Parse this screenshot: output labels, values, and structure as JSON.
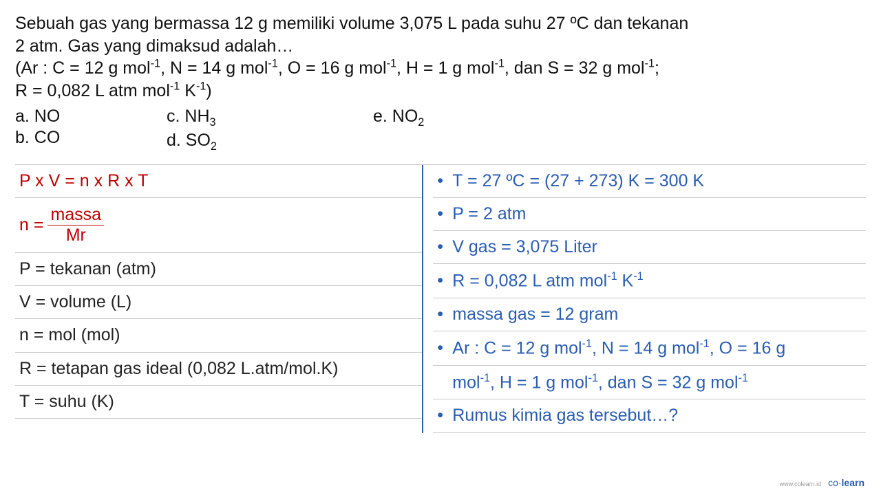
{
  "colors": {
    "text": "#111111",
    "red": "#c00000",
    "blue": "#2a5db0",
    "rule": "#c9c9c9",
    "background": "#ffffff"
  },
  "typography": {
    "body_fontsize_pt": 19,
    "footer_fontsize_pt": 11,
    "font_family": "Arial"
  },
  "question": {
    "line1": "Sebuah gas yang bermassa 12 g memiliki volume 3,075 L pada suhu 27 ºC dan tekanan",
    "line2": "2 atm. Gas yang dimaksud adalah…",
    "line3_pre": "(Ar : C = 12 g mol",
    "line3_mid1": ", N = 14 g mol",
    "line3_mid2": ", O = 16 g mol",
    "line3_mid3": ", H = 1 g mol",
    "line3_mid4": ", dan S = 32 g mol",
    "line3_end": ";",
    "line4_pre": "R = 0,082 L atm mol",
    "line4_mid": " K",
    "line4_end": ")"
  },
  "options": {
    "a_label": "a.  NO",
    "b_label": "b.  CO",
    "c_pre": "c. NH",
    "c_sub": "3",
    "d_pre": "d. SO",
    "d_sub": "2",
    "e_pre": "e. NO",
    "e_sub": "2"
  },
  "left_panel": {
    "eq1": "P x V =  n x R x T",
    "n_eq_pre": "n = ",
    "n_num": "massa",
    "n_den": "Mr",
    "p_def": "P = tekanan (atm)",
    "v_def": "V = volume (L)",
    "n_def": "n = mol (mol)",
    "r_def": "R = tetapan gas ideal (0,082 L.atm/mol.K)",
    "t_def": "T = suhu (K)"
  },
  "right_panel": {
    "r1": "T = 27 ºC = (27 + 273) K = 300 K",
    "r2": "P = 2 atm",
    "r3": "V gas = 3,075 Liter",
    "r4_pre": "R = 0,082 L atm mol",
    "r4_mid": " K",
    "r5": "massa gas = 12 gram",
    "r6a_pre": "Ar : C = 12 g mol",
    "r6a_mid1": ", N = 14 g mol",
    "r6a_mid2": ", O = 16 g",
    "r6b_pre": "mol",
    "r6b_mid1": ", H = 1 g mol",
    "r6b_mid2": ", dan S = 32 g mol",
    "r7": "Rumus kimia gas tersebut…?"
  },
  "footer": {
    "site": "www.colearn.id",
    "brand_a": "co",
    "brand_dot": "·",
    "brand_b": "learn"
  }
}
